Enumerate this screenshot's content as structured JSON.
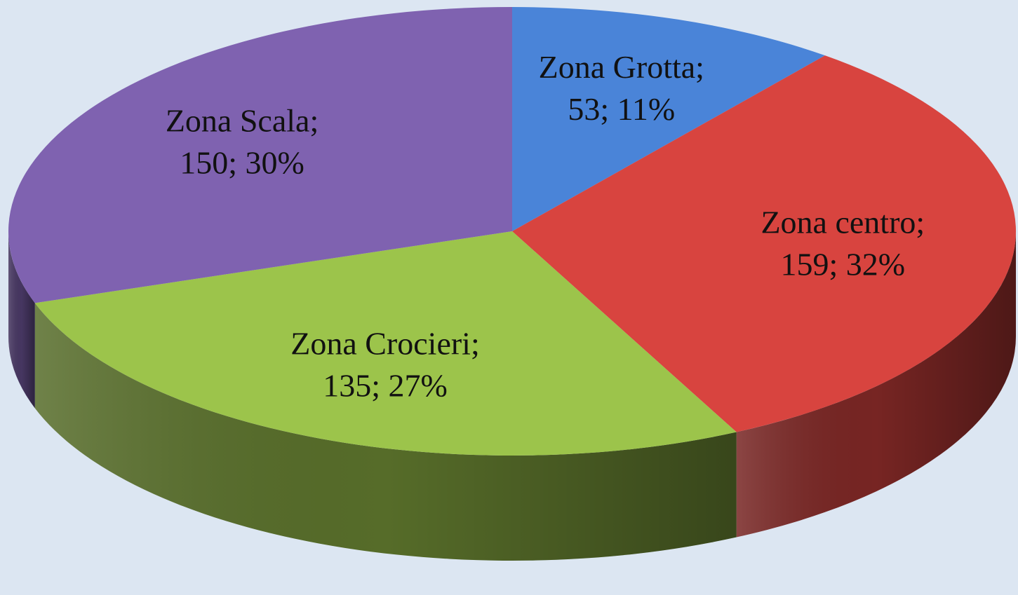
{
  "chart_data": {
    "type": "pie",
    "categories": [
      "Zona Grotta;",
      "Zona centro;",
      "Zona Crocieri;",
      "Zona Scala;"
    ],
    "values": [
      53,
      159,
      135,
      150
    ],
    "value_labels": [
      "53; 11%",
      "159; 32%",
      "135; 27%",
      "150; 30%"
    ],
    "colors": [
      "#4a84d8",
      "#d8443f",
      "#9cc44b",
      "#7f62b0"
    ]
  }
}
